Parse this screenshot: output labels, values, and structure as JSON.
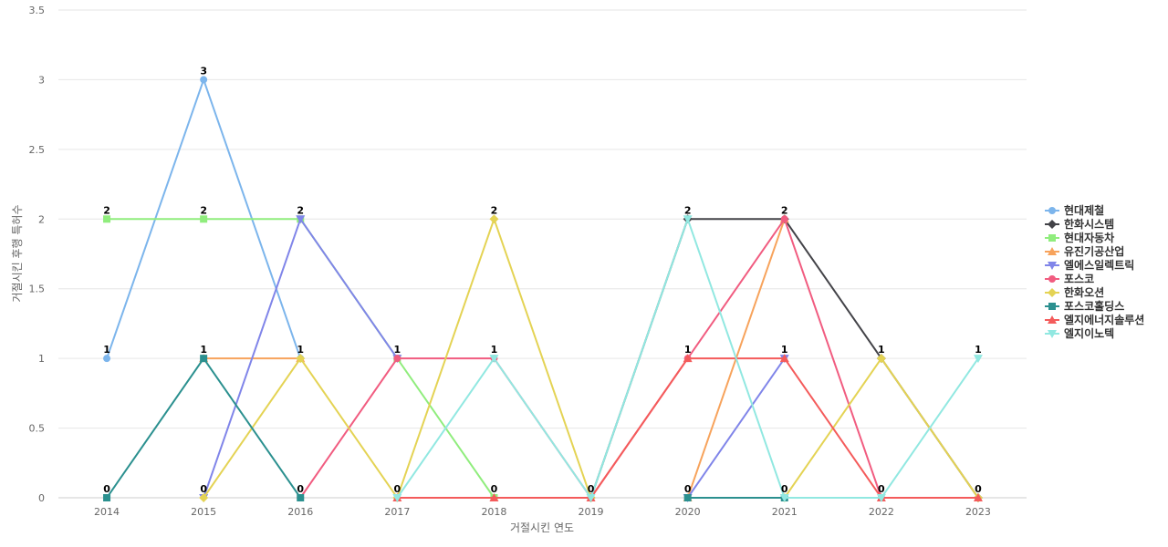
{
  "chart_data": {
    "type": "line",
    "xlabel": "거절시킨 연도",
    "ylabel": "거절시킨 후행 특허수",
    "x": [
      "2014",
      "2015",
      "2016",
      "2017",
      "2018",
      "2019",
      "2020",
      "2021",
      "2022",
      "2023"
    ],
    "ylim": [
      0,
      3.5
    ],
    "yticks": [
      "0",
      "0.5",
      "1",
      "1.5",
      "2",
      "2.5",
      "3",
      "3.5"
    ],
    "grid": true,
    "legend_position": "right",
    "series": [
      {
        "name": "현대제철",
        "color": "#7cb5ec",
        "marker": "circle",
        "values": [
          1,
          3,
          1,
          null,
          null,
          null,
          null,
          null,
          null,
          null
        ]
      },
      {
        "name": "한화시스템",
        "color": "#434348",
        "marker": "diamond",
        "values": [
          null,
          null,
          null,
          null,
          null,
          0,
          2,
          2,
          1,
          0
        ]
      },
      {
        "name": "현대자동차",
        "color": "#90ed7d",
        "marker": "square",
        "values": [
          2,
          2,
          2,
          1,
          0,
          null,
          null,
          null,
          null,
          null
        ]
      },
      {
        "name": "유진기공산업",
        "color": "#f7a35c",
        "marker": "triangle",
        "values": [
          null,
          1,
          1,
          null,
          null,
          null,
          0,
          2,
          null,
          null
        ]
      },
      {
        "name": "엘에스일렉트릭",
        "color": "#8085e9",
        "marker": "triangle-down",
        "values": [
          null,
          0,
          2,
          1,
          null,
          null,
          0,
          1,
          null,
          null
        ]
      },
      {
        "name": "포스코",
        "color": "#f15c80",
        "marker": "circle",
        "values": [
          null,
          null,
          0,
          1,
          1,
          0,
          1,
          2,
          0,
          null
        ]
      },
      {
        "name": "한화오션",
        "color": "#e4d354",
        "marker": "diamond",
        "values": [
          null,
          0,
          1,
          0,
          2,
          0,
          null,
          0,
          1,
          0
        ]
      },
      {
        "name": "포스코홀딩스",
        "color": "#2b908f",
        "marker": "square",
        "values": [
          0,
          1,
          0,
          null,
          null,
          null,
          0,
          0,
          null,
          null
        ]
      },
      {
        "name": "엘지에너지솔루션",
        "color": "#f45b5b",
        "marker": "triangle",
        "values": [
          null,
          null,
          null,
          0,
          0,
          0,
          1,
          1,
          0,
          0
        ]
      },
      {
        "name": "엘지이노텍",
        "color": "#91e8e1",
        "marker": "triangle-down",
        "values": [
          null,
          null,
          null,
          0,
          1,
          0,
          2,
          0,
          0,
          1
        ]
      }
    ],
    "data_labels": [
      {
        "x": "2014",
        "y": 2,
        "text": "2"
      },
      {
        "x": "2014",
        "y": 1,
        "text": "1"
      },
      {
        "x": "2014",
        "y": 0,
        "text": "0"
      },
      {
        "x": "2015",
        "y": 3,
        "text": "3"
      },
      {
        "x": "2015",
        "y": 2,
        "text": "2"
      },
      {
        "x": "2015",
        "y": 1,
        "text": "1"
      },
      {
        "x": "2015",
        "y": 0,
        "text": "0"
      },
      {
        "x": "2016",
        "y": 2,
        "text": "2"
      },
      {
        "x": "2016",
        "y": 1,
        "text": "1"
      },
      {
        "x": "2016",
        "y": 0,
        "text": "0"
      },
      {
        "x": "2017",
        "y": 1,
        "text": "1"
      },
      {
        "x": "2017",
        "y": 0,
        "text": "0"
      },
      {
        "x": "2018",
        "y": 2,
        "text": "2"
      },
      {
        "x": "2018",
        "y": 1,
        "text": "1"
      },
      {
        "x": "2018",
        "y": 0,
        "text": "0"
      },
      {
        "x": "2019",
        "y": 0,
        "text": "0"
      },
      {
        "x": "2020",
        "y": 2,
        "text": "2"
      },
      {
        "x": "2020",
        "y": 1,
        "text": "1"
      },
      {
        "x": "2020",
        "y": 0,
        "text": "0"
      },
      {
        "x": "2021",
        "y": 2,
        "text": "2"
      },
      {
        "x": "2021",
        "y": 1,
        "text": "1"
      },
      {
        "x": "2021",
        "y": 0,
        "text": "0"
      },
      {
        "x": "2022",
        "y": 1,
        "text": "1"
      },
      {
        "x": "2022",
        "y": 0,
        "text": "0"
      },
      {
        "x": "2023",
        "y": 1,
        "text": "1"
      },
      {
        "x": "2023",
        "y": 0,
        "text": "0"
      }
    ]
  }
}
